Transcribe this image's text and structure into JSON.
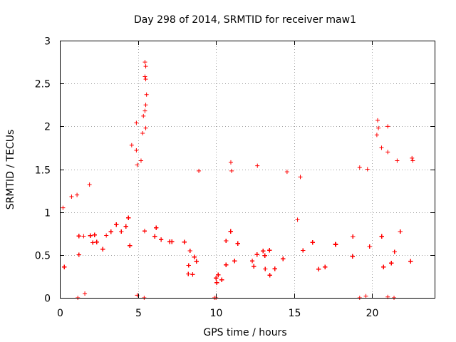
{
  "chart_data": {
    "type": "scatter",
    "title": "Day 298 of 2014, SRMTID for receiver maw1",
    "xlabel": "GPS time / hours",
    "ylabel": "SRMTID / TECUs",
    "xlim": [
      0,
      24
    ],
    "ylim": [
      0,
      3
    ],
    "xticks": [
      0,
      5,
      10,
      15,
      20
    ],
    "yticks": [
      0,
      0.5,
      1,
      1.5,
      2,
      2.5,
      3
    ],
    "xtick_labels": [
      "0",
      "5",
      "10",
      "15",
      "20"
    ],
    "ytick_labels": [
      "0",
      "0.5",
      "1",
      "1.5",
      "2",
      "2.5",
      "3"
    ],
    "grid": true,
    "series": [
      {
        "name": "maw1",
        "marker": "plus",
        "color": "#ff0000",
        "envelope": [
          {
            "x": 0.0,
            "mid": 0.5,
            "spread": 0.22
          },
          {
            "x": 1.0,
            "mid": 0.45,
            "spread": 0.28
          },
          {
            "x": 1.5,
            "mid": 0.6,
            "spread": 0.3
          },
          {
            "x": 2.0,
            "mid": 0.75,
            "spread": 0.3
          },
          {
            "x": 3.0,
            "mid": 0.6,
            "spread": 0.3
          },
          {
            "x": 4.0,
            "mid": 0.85,
            "spread": 0.35
          },
          {
            "x": 5.0,
            "mid": 1.0,
            "spread": 0.5
          },
          {
            "x": 5.5,
            "mid": 1.1,
            "spread": 0.6
          },
          {
            "x": 6.0,
            "mid": 0.75,
            "spread": 0.35
          },
          {
            "x": 7.0,
            "mid": 0.6,
            "spread": 0.3
          },
          {
            "x": 8.0,
            "mid": 0.55,
            "spread": 0.3
          },
          {
            "x": 9.0,
            "mid": 0.4,
            "spread": 0.25
          },
          {
            "x": 10.0,
            "mid": 0.25,
            "spread": 0.15
          },
          {
            "x": 11.0,
            "mid": 0.45,
            "spread": 0.3
          },
          {
            "x": 12.0,
            "mid": 0.4,
            "spread": 0.25
          },
          {
            "x": 13.0,
            "mid": 0.45,
            "spread": 0.25
          },
          {
            "x": 14.0,
            "mid": 0.55,
            "spread": 0.3
          },
          {
            "x": 15.0,
            "mid": 0.8,
            "spread": 0.35
          },
          {
            "x": 16.0,
            "mid": 0.7,
            "spread": 0.3
          },
          {
            "x": 17.0,
            "mid": 0.55,
            "spread": 0.3
          },
          {
            "x": 18.0,
            "mid": 0.6,
            "spread": 0.35
          },
          {
            "x": 19.0,
            "mid": 0.5,
            "spread": 0.4
          },
          {
            "x": 20.0,
            "mid": 0.45,
            "spread": 0.4
          },
          {
            "x": 21.0,
            "mid": 0.6,
            "spread": 0.4
          },
          {
            "x": 22.0,
            "mid": 0.7,
            "spread": 0.4
          },
          {
            "x": 22.6,
            "mid": 0.9,
            "spread": 0.5
          }
        ],
        "outliers": [
          {
            "x": 5.45,
            "y": 2.75
          },
          {
            "x": 5.5,
            "y": 2.7
          },
          {
            "x": 5.45,
            "y": 2.58
          },
          {
            "x": 5.5,
            "y": 2.55
          },
          {
            "x": 5.55,
            "y": 2.37
          },
          {
            "x": 5.5,
            "y": 2.25
          },
          {
            "x": 5.45,
            "y": 2.18
          },
          {
            "x": 5.35,
            "y": 2.12
          },
          {
            "x": 4.9,
            "y": 2.04
          },
          {
            "x": 5.5,
            "y": 1.98
          },
          {
            "x": 5.3,
            "y": 1.92
          },
          {
            "x": 4.6,
            "y": 1.78
          },
          {
            "x": 4.9,
            "y": 1.72
          },
          {
            "x": 5.2,
            "y": 1.6
          },
          {
            "x": 4.95,
            "y": 1.55
          },
          {
            "x": 20.35,
            "y": 2.07
          },
          {
            "x": 20.4,
            "y": 1.98
          },
          {
            "x": 20.3,
            "y": 1.9
          },
          {
            "x": 21.0,
            "y": 2.0
          },
          {
            "x": 21.0,
            "y": 1.7
          },
          {
            "x": 20.6,
            "y": 1.75
          },
          {
            "x": 21.6,
            "y": 1.6
          },
          {
            "x": 22.55,
            "y": 1.63
          },
          {
            "x": 22.6,
            "y": 1.6
          },
          {
            "x": 10.95,
            "y": 1.58
          },
          {
            "x": 11.0,
            "y": 1.48
          },
          {
            "x": 12.65,
            "y": 1.54
          },
          {
            "x": 14.55,
            "y": 1.47
          },
          {
            "x": 8.9,
            "y": 1.48
          },
          {
            "x": 15.4,
            "y": 1.41
          },
          {
            "x": 19.2,
            "y": 1.52
          },
          {
            "x": 19.7,
            "y": 1.5
          },
          {
            "x": 1.9,
            "y": 1.32
          },
          {
            "x": 1.1,
            "y": 1.2
          },
          {
            "x": 0.75,
            "y": 1.18
          },
          {
            "x": 0.2,
            "y": 1.05
          },
          {
            "x": 1.15,
            "y": 0.0
          },
          {
            "x": 1.6,
            "y": 0.05
          },
          {
            "x": 4.95,
            "y": 0.03
          },
          {
            "x": 5.4,
            "y": 0.0
          },
          {
            "x": 9.9,
            "y": 0.0
          },
          {
            "x": 10.0,
            "y": 0.0
          },
          {
            "x": 19.2,
            "y": 0.0
          },
          {
            "x": 19.6,
            "y": 0.02
          },
          {
            "x": 21.0,
            "y": 0.01
          },
          {
            "x": 21.4,
            "y": 0.0
          }
        ]
      }
    ]
  }
}
